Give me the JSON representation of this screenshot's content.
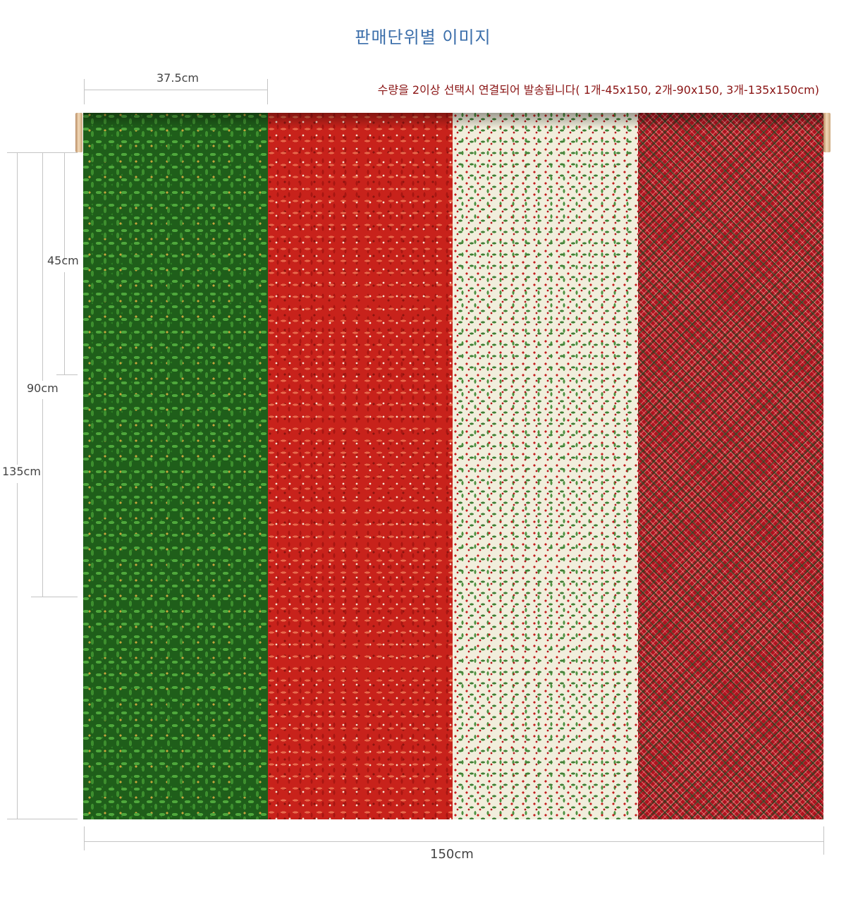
{
  "title": "판매단위별 이미지",
  "notice": "수량을 2이상 선택시 연결되어 발송됩니다( 1개-45x150, 2개-90x150, 3개-135x150cm)",
  "dimensions": {
    "panel_width": "37.5cm",
    "height_1": "45cm",
    "height_2": "90cm",
    "height_3": "135cm",
    "total_width": "150cm"
  },
  "fabrics": [
    {
      "name": "green-leaf-print",
      "base_color": "#1f5e1a"
    },
    {
      "name": "red-berry-print",
      "base_color": "#c8221b"
    },
    {
      "name": "cream-holly-print",
      "base_color": "#f1eedc"
    },
    {
      "name": "red-tartan-plaid",
      "base_color": "#b0121f"
    }
  ]
}
